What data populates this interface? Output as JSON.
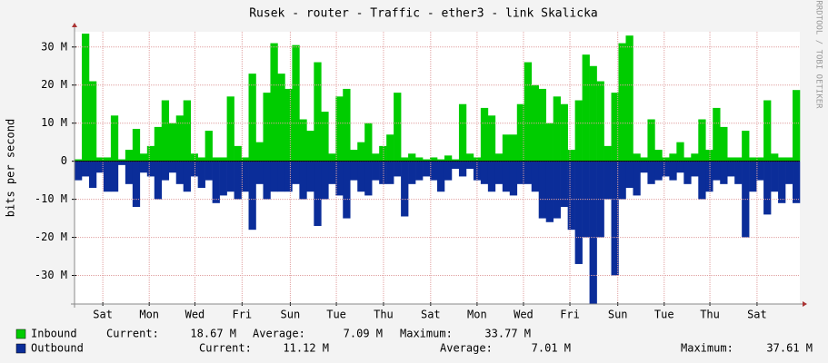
{
  "chart_data": {
    "type": "bar",
    "title": "Rusek - router - Traffic - ether3 - link Skalicka",
    "y_label": "bits per second",
    "side_note": "RRDTOOL / TOBI OETIKER",
    "categories": [
      null,
      null,
      null,
      null,
      null,
      null,
      null,
      null,
      null,
      null,
      null,
      null,
      null,
      null,
      null,
      null,
      null,
      null,
      null,
      null,
      null,
      null,
      null,
      null,
      null,
      null,
      null,
      null,
      null,
      null,
      null,
      null,
      null,
      null,
      null,
      null,
      null,
      null,
      null,
      null,
      null,
      null,
      null,
      null,
      null,
      null,
      null,
      null,
      null,
      null,
      null,
      null,
      null,
      null,
      null,
      null,
      null,
      null,
      null,
      null,
      null,
      null,
      null,
      null,
      null,
      null,
      null,
      null,
      null,
      null,
      null,
      null,
      null,
      null,
      null,
      null,
      null,
      null,
      null,
      null,
      null,
      null,
      null,
      null,
      null,
      null,
      null,
      null,
      null,
      null,
      null,
      null,
      null,
      null,
      null,
      null,
      null,
      null,
      null,
      null
    ],
    "series": [
      {
        "name": "Inbound",
        "color": "#00cc00",
        "values": [
          0.5,
          33.5,
          21,
          1,
          1,
          12,
          0.5,
          3,
          8.5,
          2,
          4,
          9,
          16,
          10,
          12,
          16,
          2,
          1,
          8,
          1,
          1,
          17,
          4,
          1,
          23,
          5,
          18,
          31,
          23,
          19,
          30.5,
          11,
          8,
          26,
          13,
          2,
          17,
          19,
          3,
          5,
          10,
          2,
          4,
          7,
          18,
          1,
          2,
          1,
          0.5,
          1,
          0.5,
          1.5,
          0.5,
          15,
          2,
          1,
          14,
          12,
          2,
          7,
          7,
          15,
          26,
          20,
          19,
          10,
          17,
          15,
          3,
          16,
          28,
          25,
          21,
          4,
          18,
          31,
          33,
          2,
          1,
          11,
          3,
          1,
          2,
          5,
          1,
          2,
          11,
          3,
          14,
          9,
          1,
          1,
          8,
          1,
          1,
          16,
          2,
          1,
          1,
          18.7
        ],
        "stats": [
          {
            "label": "Current:",
            "value": "18.67 M"
          },
          {
            "label": "Average:",
            "value": "7.09 M"
          },
          {
            "label": "Maximum:",
            "value": "33.77 M"
          }
        ]
      },
      {
        "name": "Outbound",
        "color": "#0b2d99",
        "values": [
          -5,
          -4,
          -7,
          -3,
          -8,
          -8,
          -1,
          -6,
          -12,
          -3,
          -4,
          -10,
          -5,
          -3,
          -6,
          -8,
          -4,
          -7,
          -5,
          -11,
          -9,
          -8,
          -10,
          -8,
          -18,
          -6,
          -10,
          -8,
          -8,
          -8,
          -6,
          -10,
          -8,
          -17,
          -10,
          -6,
          -9,
          -15,
          -5,
          -8,
          -9,
          -5,
          -6,
          -6,
          -4,
          -14.5,
          -6,
          -5,
          -4,
          -5,
          -8,
          -5,
          -2,
          -4,
          -2,
          -5,
          -6,
          -8,
          -6,
          -8,
          -9,
          -6,
          -6,
          -8,
          -15,
          -16,
          -15,
          -12,
          -18,
          -27,
          -20,
          -37.5,
          -20,
          -10,
          -30,
          -10,
          -7,
          -9,
          -3,
          -6,
          -5,
          -4,
          -5,
          -3,
          -6,
          -4,
          -10,
          -8,
          -5,
          -6,
          -4,
          -6,
          -20,
          -8,
          -5,
          -14,
          -8,
          -11,
          -6,
          -11
        ],
        "stats": [
          {
            "label": "Current:",
            "value": "11.12 M"
          },
          {
            "label": "Average:",
            "value": "7.01 M"
          },
          {
            "label": "Maximum:",
            "value": "37.61 M"
          }
        ]
      }
    ],
    "xlim": [
      0,
      100
    ],
    "xticks": [
      {
        "value": 3.9,
        "label": "Sat"
      },
      {
        "value": 10.3,
        "label": "Mon"
      },
      {
        "value": 16.6,
        "label": "Wed"
      },
      {
        "value": 23.1,
        "label": "Fri"
      },
      {
        "value": 29.75,
        "label": "Sun"
      },
      {
        "value": 36.1,
        "label": "Tue"
      },
      {
        "value": 42.6,
        "label": "Thu"
      },
      {
        "value": 49.1,
        "label": "Sat"
      },
      {
        "value": 55.5,
        "label": "Mon"
      },
      {
        "value": 61.9,
        "label": "Wed"
      },
      {
        "value": 68.3,
        "label": "Fri"
      },
      {
        "value": 74.9,
        "label": "Sun"
      },
      {
        "value": 81.3,
        "label": "Tue"
      },
      {
        "value": 87.6,
        "label": "Thu"
      },
      {
        "value": 94.1,
        "label": "Sat"
      }
    ],
    "ylim": [
      -37.5,
      34
    ],
    "yticks": [
      {
        "value": -30,
        "label": "-30 M"
      },
      {
        "value": -20,
        "label": "-20 M"
      },
      {
        "value": -10,
        "label": "-10 M"
      },
      {
        "value": 0,
        "label": "0"
      },
      {
        "value": 10,
        "label": "10 M"
      },
      {
        "value": 20,
        "label": "20 M"
      },
      {
        "value": 30,
        "label": "30 M"
      }
    ],
    "grid": true
  }
}
